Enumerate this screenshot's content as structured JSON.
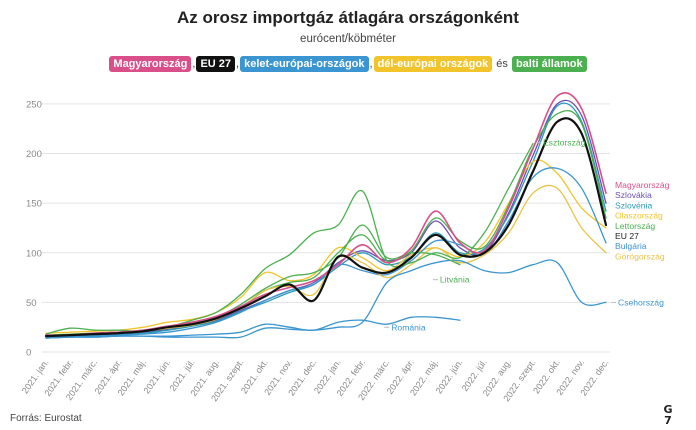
{
  "header": {
    "title": "Az orosz importgáz átlagára országonként",
    "subtitle": "eurócent/köbméter"
  },
  "legend": {
    "items": [
      {
        "label": "Magyarország",
        "color": "#d94f8a"
      },
      {
        "label": "EU 27",
        "color": "#111111"
      },
      {
        "label": "kelet-európai-országok",
        "color": "#3b95d0"
      },
      {
        "label": "dél-európai országok",
        "color": "#f2c42c"
      },
      {
        "label": "balti államok",
        "color": "#4caf50"
      }
    ],
    "separator": ",",
    "conjunction": "és"
  },
  "footer": {
    "source": "Forrás: Eurostat",
    "logo_top": "G",
    "logo_bottom": "7"
  },
  "chart_data": {
    "type": "line",
    "ylim": [
      0,
      260
    ],
    "yticks": [
      0,
      50,
      100,
      150,
      200,
      250
    ],
    "grid": true,
    "categories": [
      "2021. jan.",
      "2021. febr.",
      "2021. márc.",
      "2021. ápr.",
      "2021. máj.",
      "2021. jún.",
      "2021. júl.",
      "2021. aug.",
      "2021. szept.",
      "2021. okt.",
      "2021. nov.",
      "2021. dec.",
      "2022. jan.",
      "2022. febr.",
      "2022. márc.",
      "2022. ápr.",
      "2022. máj.",
      "2022. jún.",
      "2022. júl.",
      "2022. aug.",
      "2022. szept.",
      "2022. okt.",
      "2022. nov.",
      "2022. dec."
    ],
    "series": [
      {
        "name": "Magyarország",
        "color": "#d94f8a",
        "width": 1.6,
        "values": [
          17,
          17,
          19,
          20,
          22,
          26,
          30,
          36,
          46,
          58,
          65,
          72,
          88,
          108,
          90,
          105,
          142,
          110,
          102,
          145,
          205,
          258,
          245,
          160
        ]
      },
      {
        "name": "Szlovákia",
        "color": "#6a4fb5",
        "width": 1.3,
        "values": [
          16,
          17,
          18,
          19,
          20,
          23,
          27,
          32,
          42,
          52,
          62,
          70,
          90,
          102,
          92,
          100,
          132,
          105,
          100,
          140,
          198,
          250,
          238,
          150
        ]
      },
      {
        "name": "Szlovénia",
        "color": "#2a9bb5",
        "width": 1.3,
        "values": [
          15,
          16,
          17,
          18,
          19,
          22,
          26,
          31,
          41,
          50,
          60,
          68,
          86,
          100,
          88,
          96,
          120,
          100,
          104,
          138,
          192,
          248,
          232,
          142
        ]
      },
      {
        "name": "Olaszország",
        "color": "#f2c42c",
        "width": 1.3,
        "values": [
          19,
          20,
          21,
          22,
          25,
          30,
          33,
          40,
          55,
          80,
          72,
          78,
          105,
          95,
          82,
          98,
          105,
          96,
          110,
          150,
          192,
          180,
          145,
          125
        ]
      },
      {
        "name": "Lettország",
        "color": "#4caf50",
        "width": 1.3,
        "values": [
          16,
          17,
          18,
          20,
          22,
          26,
          29,
          35,
          45,
          62,
          70,
          75,
          100,
          118,
          92,
          102,
          135,
          112,
          106,
          148,
          206,
          240,
          230,
          135
        ]
      },
      {
        "name": "EU 27",
        "color": "#111111",
        "width": 2.2,
        "values": [
          16,
          17,
          18,
          19,
          21,
          25,
          28,
          34,
          44,
          56,
          68,
          52,
          96,
          85,
          80,
          95,
          118,
          98,
          100,
          128,
          182,
          232,
          220,
          128
        ]
      },
      {
        "name": "Bulgária",
        "color": "#3b95d0",
        "width": 1.3,
        "values": [
          14,
          15,
          16,
          17,
          18,
          20,
          24,
          30,
          40,
          52,
          62,
          68,
          88,
          82,
          78,
          92,
          112,
          108,
          98,
          132,
          176,
          185,
          165,
          110
        ]
      },
      {
        "name": "Görögország",
        "color": "#e8c44a",
        "width": 1.3,
        "values": [
          17,
          17,
          18,
          19,
          21,
          24,
          27,
          33,
          45,
          62,
          66,
          58,
          95,
          90,
          75,
          88,
          105,
          90,
          98,
          120,
          160,
          165,
          125,
          100
        ]
      },
      {
        "name": "Csehország",
        "color": "#3b95d0",
        "width": 1.3,
        "values": [
          14,
          15,
          15,
          16,
          16,
          15,
          15,
          15,
          15,
          24,
          23,
          22,
          25,
          30,
          70,
          82,
          90,
          92,
          82,
          80,
          88,
          90,
          50,
          50
        ]
      },
      {
        "name": "Észtország",
        "color": "#4caf50",
        "width": 1.3,
        "values": [
          18,
          24,
          22,
          22,
          21,
          25,
          32,
          40,
          58,
          84,
          98,
          120,
          128,
          162,
          92,
          90,
          100,
          95,
          120,
          165,
          210,
          null,
          null,
          null
        ]
      },
      {
        "name": "Litvánia",
        "color": "#4caf50",
        "width": 1.3,
        "values": [
          17,
          18,
          19,
          20,
          22,
          25,
          28,
          35,
          48,
          64,
          76,
          80,
          95,
          128,
          95,
          100,
          98,
          88,
          null,
          null,
          null,
          null,
          null,
          null
        ]
      },
      {
        "name": "Románia",
        "color": "#3b95d0",
        "width": 1.3,
        "values": [
          15,
          15,
          15,
          16,
          16,
          16,
          17,
          18,
          20,
          28,
          25,
          22,
          30,
          32,
          28,
          35,
          35,
          32,
          null,
          null,
          null,
          null,
          null,
          null
        ]
      }
    ]
  }
}
